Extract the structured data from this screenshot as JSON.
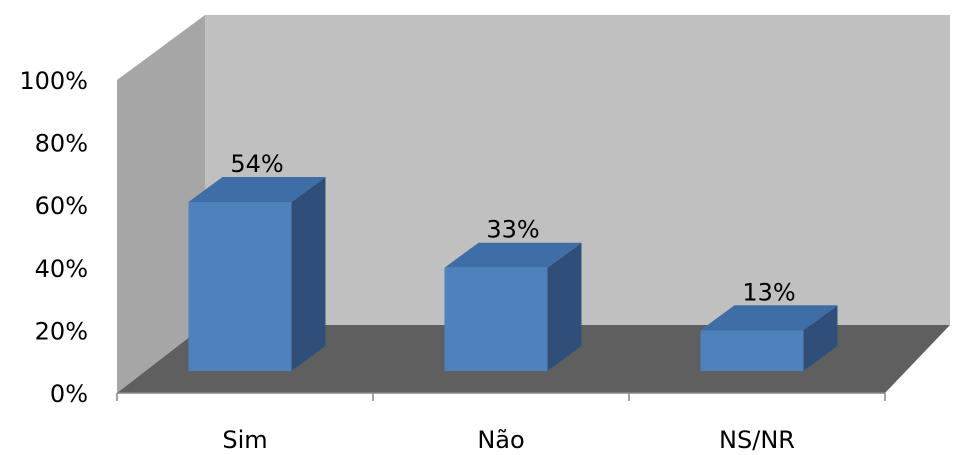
{
  "chart_data": {
    "type": "bar",
    "title": "",
    "xlabel": "",
    "ylabel": "",
    "categories": [
      "Sim",
      "Não",
      "NS/NR"
    ],
    "values": [
      54,
      33,
      13
    ],
    "data_labels": [
      "54%",
      "33%",
      "13%"
    ],
    "ylim": [
      0,
      100
    ],
    "yticks": [
      0,
      20,
      40,
      60,
      80,
      100
    ],
    "ytick_labels": [
      "0%",
      "20%",
      "40%",
      "60%",
      "80%",
      "100%"
    ],
    "style": "3d-column",
    "grid": false,
    "legend": "none"
  },
  "colors": {
    "bar_front": "#4f81bd",
    "bar_top": "#3f6ea6",
    "bar_side": "#2f4f7a",
    "back_wall": "#c0c0c0",
    "side_wall": "#a6a6a6",
    "floor": "#5f5f5f",
    "axis": "#868686"
  }
}
